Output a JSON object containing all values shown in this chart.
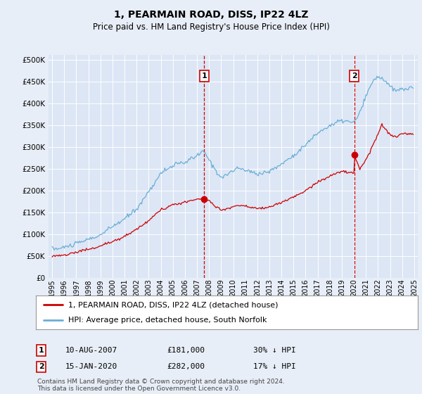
{
  "title": "1, PEARMAIN ROAD, DISS, IP22 4LZ",
  "subtitle": "Price paid vs. HM Land Registry's House Price Index (HPI)",
  "background_color": "#e8eef7",
  "plot_bg_color": "#dce6f5",
  "ylim": [
    0,
    510000
  ],
  "yticks": [
    0,
    50000,
    100000,
    150000,
    200000,
    250000,
    300000,
    350000,
    400000,
    450000,
    500000
  ],
  "xlim_start": 1994.7,
  "xlim_end": 2025.3,
  "hpi_color": "#6baed6",
  "price_color": "#cc0000",
  "vline_color": "#cc0000",
  "legend_label_price": "1, PEARMAIN ROAD, DISS, IP22 4LZ (detached house)",
  "legend_label_hpi": "HPI: Average price, detached house, South Norfolk",
  "annotation1_date": "10-AUG-2007",
  "annotation1_price": "£181,000",
  "annotation1_hpi": "30% ↓ HPI",
  "annotation1_year": 2007.6,
  "annotation1_value": 181000,
  "annotation2_date": "15-JAN-2020",
  "annotation2_price": "£282,000",
  "annotation2_hpi": "17% ↓ HPI",
  "annotation2_year": 2020.04,
  "annotation2_value": 282000,
  "footer": "Contains HM Land Registry data © Crown copyright and database right 2024.\nThis data is licensed under the Open Government Licence v3.0.",
  "xticks": [
    1995,
    1996,
    1997,
    1998,
    1999,
    2000,
    2001,
    2002,
    2003,
    2004,
    2005,
    2006,
    2007,
    2008,
    2009,
    2010,
    2011,
    2012,
    2013,
    2014,
    2015,
    2016,
    2017,
    2018,
    2019,
    2020,
    2021,
    2022,
    2023,
    2024,
    2025
  ]
}
